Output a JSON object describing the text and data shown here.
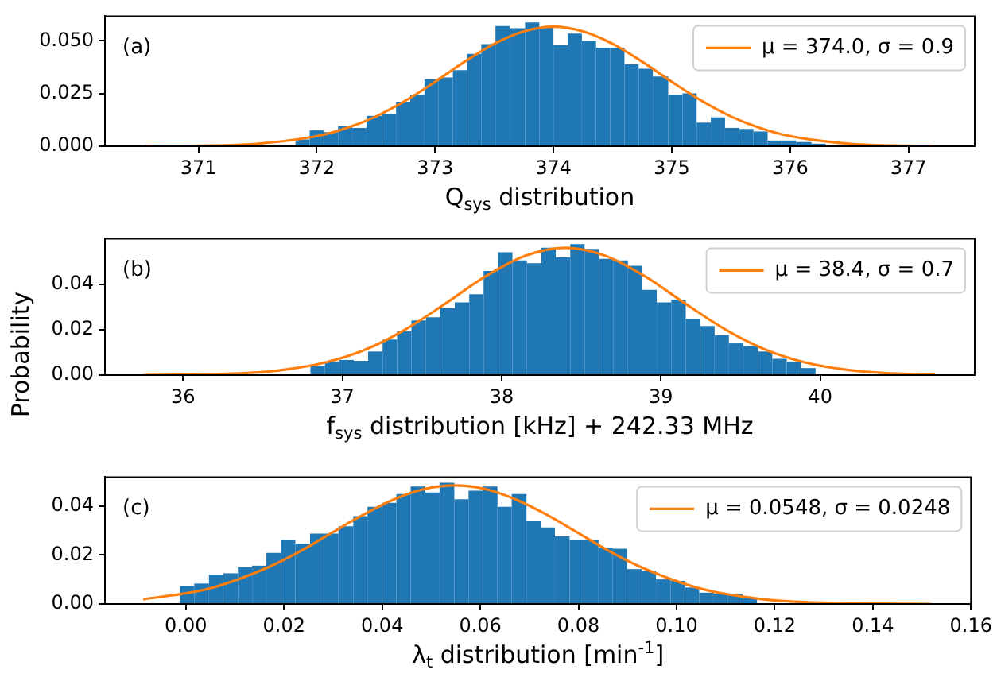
{
  "chart_data": [
    {
      "type": "histogram",
      "xlabel": "Q$_{sys}$ distribution",
      "annotations": [
        "(a)"
      ],
      "xlim": [
        370.21,
        377.56
      ],
      "ylim": [
        0,
        0.0617
      ],
      "xticks": [
        371,
        372,
        373,
        374,
        375,
        376,
        377
      ],
      "yticks": [
        {
          "value": 0,
          "label": "0.000"
        },
        {
          "value": 0.025,
          "label": "0.025"
        },
        {
          "value": 0.05,
          "label": "0.050"
        }
      ],
      "grid": false,
      "legend": "top right",
      "marker": "none",
      "line_style": "solid",
      "series": [
        {
          "color": "#1f77b4",
          "bins": [
            371.82,
            371.94,
            372.06,
            372.18,
            372.3,
            372.42,
            372.55,
            372.67,
            372.79,
            372.91,
            373.03,
            373.15,
            373.27,
            373.39,
            373.51,
            373.63,
            373.76,
            373.88,
            374.0,
            374.12,
            374.24,
            374.36,
            374.48,
            374.6,
            374.72,
            374.84,
            374.97,
            375.09,
            375.21,
            375.33,
            375.45,
            375.57,
            375.69,
            375.81,
            375.93,
            376.05,
            376.18,
            376.3
          ],
          "values": [
            0.0032,
            0.0075,
            0.0067,
            0.0095,
            0.0087,
            0.0144,
            0.0152,
            0.0211,
            0.0244,
            0.0318,
            0.0326,
            0.0361,
            0.0438,
            0.0485,
            0.057,
            0.056,
            0.0587,
            0.0567,
            0.048,
            0.0535,
            0.05,
            0.0468,
            0.0468,
            0.0388,
            0.0368,
            0.0331,
            0.0244,
            0.0251,
            0.0112,
            0.0137,
            0.0087,
            0.0082,
            0.007,
            0.0027,
            0.0027,
            0.002,
            0.0012
          ]
        },
        {
          "type": "line",
          "name": "μ = 374.0, σ = 0.9",
          "color": "#ff7f0e",
          "x": [
            370.55,
            371,
            371.5,
            372,
            372.25,
            372.5,
            372.75,
            373,
            373.25,
            373.5,
            373.75,
            374,
            374.25,
            374.5,
            374.75,
            375,
            375.25,
            375.5,
            375.75,
            376,
            376.5,
            377,
            377.2
          ],
          "values": [
            0,
            0.0002,
            0.0012,
            0.0048,
            0.0086,
            0.0141,
            0.0216,
            0.0306,
            0.0401,
            0.0486,
            0.0545,
            0.0567,
            0.0545,
            0.0486,
            0.0401,
            0.0306,
            0.0216,
            0.0141,
            0.0086,
            0.0048,
            0.0012,
            0.0002,
            0.0001
          ]
        }
      ]
    },
    {
      "type": "histogram",
      "xlabel": "f$_{sys}$ distribution [kHz] + 242.33 MHz",
      "ylabel": "Probability",
      "annotations": [
        "(b)"
      ],
      "xlim": [
        35.51,
        40.97
      ],
      "ylim": [
        0,
        0.0602
      ],
      "xticks": [
        36,
        37,
        38,
        39,
        40
      ],
      "yticks": [
        {
          "value": 0,
          "label": "0.00"
        },
        {
          "value": 0.02,
          "label": "0.02"
        },
        {
          "value": 0.04,
          "label": "0.04"
        }
      ],
      "grid": false,
      "legend": "top right",
      "marker": "none",
      "line_style": "solid",
      "series": [
        {
          "color": "#1f77b4",
          "bins": [
            36.8,
            36.891,
            36.981,
            37.072,
            37.162,
            37.253,
            37.344,
            37.434,
            37.525,
            37.615,
            37.706,
            37.797,
            37.887,
            37.978,
            38.068,
            38.159,
            38.25,
            38.34,
            38.431,
            38.521,
            38.612,
            38.703,
            38.793,
            38.884,
            38.974,
            39.065,
            39.156,
            39.246,
            39.337,
            39.427,
            39.518,
            39.609,
            39.699,
            39.79,
            39.88,
            39.971
          ],
          "values": [
            0.0041,
            0.006,
            0.0067,
            0.0063,
            0.0104,
            0.0157,
            0.0193,
            0.0241,
            0.0255,
            0.0296,
            0.0321,
            0.0357,
            0.046,
            0.0542,
            0.0506,
            0.0494,
            0.0562,
            0.052,
            0.0578,
            0.0557,
            0.0513,
            0.0506,
            0.0482,
            0.0376,
            0.0321,
            0.0333,
            0.0248,
            0.0217,
            0.0176,
            0.014,
            0.0128,
            0.0104,
            0.0072,
            0.006,
            0.0031
          ]
        },
        {
          "type": "line",
          "name": "μ = 38.4, σ = 0.7",
          "color": "#ff7f0e",
          "x": [
            35.75,
            36.4,
            36.65,
            36.9,
            37.15,
            37.4,
            37.65,
            37.9,
            38.15,
            38.4,
            38.65,
            38.9,
            39.15,
            39.4,
            39.65,
            39.9,
            40.15,
            40.4,
            40.72
          ],
          "values": [
            0,
            0.0009,
            0.0025,
            0.0057,
            0.0114,
            0.0203,
            0.0317,
            0.0436,
            0.0527,
            0.0562,
            0.0527,
            0.0436,
            0.0317,
            0.0203,
            0.0114,
            0.0057,
            0.0025,
            0.0009,
            0.0001
          ]
        }
      ]
    },
    {
      "type": "histogram",
      "xlabel": "λ$_{t}$ distribution [min$^{-1}$]",
      "annotations": [
        "(c)"
      ],
      "xlim": [
        -0.0165,
        0.16
      ],
      "ylim": [
        0,
        0.0517
      ],
      "xticks": [
        {
          "value": 0,
          "label": "0.00"
        },
        {
          "value": 0.02,
          "label": "0.02"
        },
        {
          "value": 0.04,
          "label": "0.04"
        },
        {
          "value": 0.06,
          "label": "0.06"
        },
        {
          "value": 0.08,
          "label": "0.08"
        },
        {
          "value": 0.1,
          "label": "0.10"
        },
        {
          "value": 0.12,
          "label": "0.12"
        },
        {
          "value": 0.14,
          "label": "0.14"
        },
        {
          "value": 0.16,
          "label": "0.16"
        }
      ],
      "yticks": [
        {
          "value": 0,
          "label": "0.00"
        },
        {
          "value": 0.02,
          "label": "0.02"
        },
        {
          "value": 0.04,
          "label": "0.04"
        }
      ],
      "grid": false,
      "legend": "top right",
      "marker": "none",
      "line_style": "solid",
      "series": [
        {
          "color": "#1f77b4",
          "bins": [
            -0.0012,
            0.0017,
            0.0047,
            0.0076,
            0.0106,
            0.0135,
            0.0164,
            0.0194,
            0.0223,
            0.0253,
            0.0282,
            0.0311,
            0.0341,
            0.037,
            0.04,
            0.0429,
            0.0458,
            0.0488,
            0.0517,
            0.0547,
            0.0576,
            0.0605,
            0.0635,
            0.0664,
            0.0694,
            0.0723,
            0.0752,
            0.0782,
            0.0811,
            0.0841,
            0.087,
            0.0899,
            0.0929,
            0.0958,
            0.0988,
            0.1017,
            0.1046,
            0.1076,
            0.1105,
            0.1135,
            0.1164
          ],
          "values": [
            0.0073,
            0.0083,
            0.0119,
            0.0125,
            0.015,
            0.0156,
            0.0208,
            0.026,
            0.0246,
            0.0287,
            0.0287,
            0.0317,
            0.0358,
            0.0396,
            0.0412,
            0.0448,
            0.0479,
            0.0454,
            0.0494,
            0.0427,
            0.0462,
            0.0479,
            0.0396,
            0.0448,
            0.0337,
            0.0312,
            0.0275,
            0.026,
            0.026,
            0.0229,
            0.0225,
            0.0142,
            0.0135,
            0.01,
            0.0094,
            0.0067,
            0.0046,
            0.0042,
            0.0042,
            0.0025
          ]
        },
        {
          "type": "line",
          "name": "μ = 0.0548, σ = 0.0248",
          "color": "#ff7f0e",
          "x": [
            -0.0087,
            0.0048,
            0.0173,
            0.0236,
            0.0298,
            0.0361,
            0.0423,
            0.0485,
            0.0548,
            0.0611,
            0.0673,
            0.0736,
            0.0798,
            0.086,
            0.0923,
            0.1048,
            0.1173,
            0.1298,
            0.1423,
            0.152
          ],
          "values": [
            0.0019,
            0.0063,
            0.0154,
            0.0218,
            0.0291,
            0.0363,
            0.0425,
            0.0468,
            0.0483,
            0.0468,
            0.0425,
            0.0363,
            0.0291,
            0.0218,
            0.0154,
            0.0063,
            0.002,
            0.0005,
            0.0001,
            0
          ]
        }
      ]
    }
  ]
}
